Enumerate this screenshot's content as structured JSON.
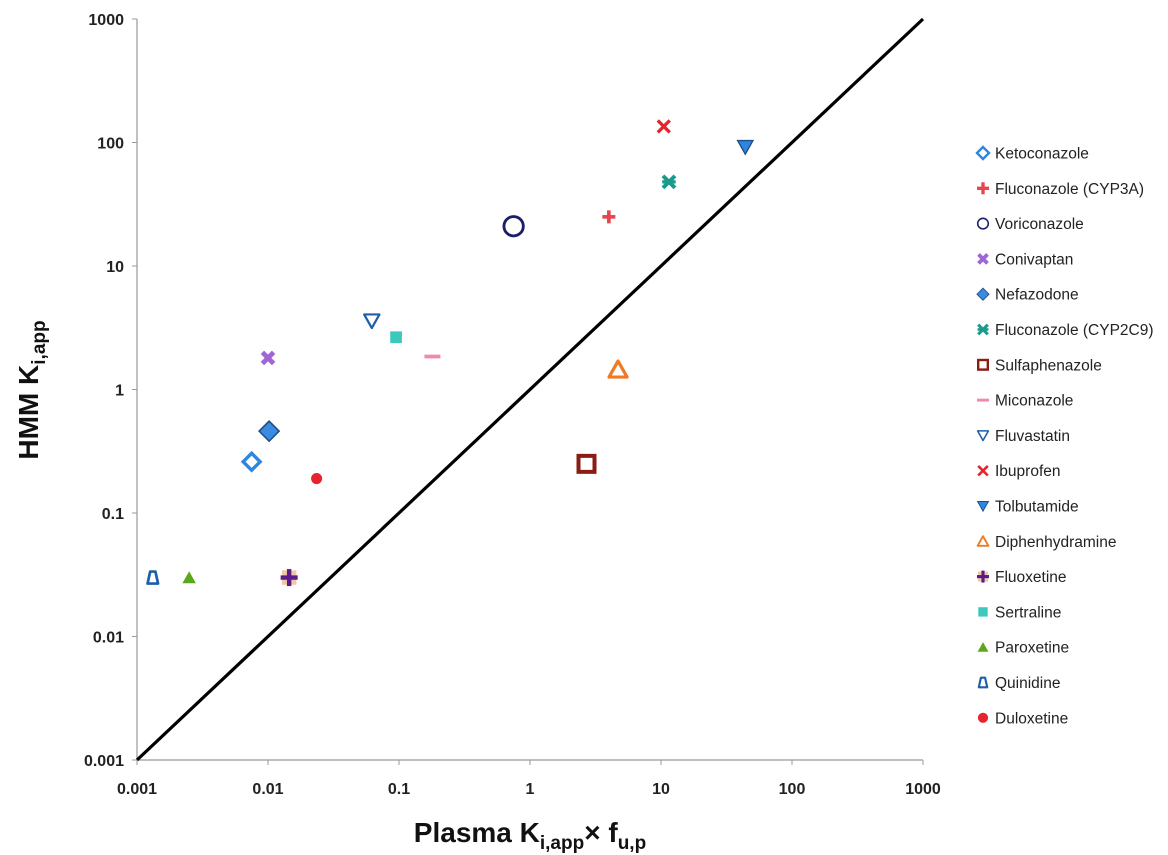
{
  "chart_data": {
    "type": "scatter",
    "title": "",
    "xlabel": {
      "main": "Plasma K",
      "sub": "i,app",
      "mid": "× f",
      "sub2": "u,p"
    },
    "ylabel": {
      "main": "HMM K",
      "sub": "i,app"
    },
    "xscale": "log",
    "yscale": "log",
    "xlim": [
      0.001,
      1000
    ],
    "ylim": [
      0.001,
      1000
    ],
    "x_ticks": [
      "0.001",
      "0.01",
      "0.1",
      "1",
      "10",
      "100",
      "1000"
    ],
    "y_ticks": [
      "0.001",
      "0.01",
      "0.1",
      "1",
      "10",
      "100",
      "1000"
    ],
    "grid": false,
    "legend_position": "right",
    "unity_line": {
      "from": [
        0.001,
        0.001
      ],
      "to": [
        1000,
        1000
      ],
      "color": "#000000"
    },
    "series": [
      {
        "name": "Ketoconazole",
        "marker": "diamond-open",
        "color": "#2e86de",
        "points": [
          [
            0.0075,
            0.26
          ]
        ]
      },
      {
        "name": "Fluconazole (CYP3A)",
        "marker": "plus",
        "color": "#e8434f",
        "points": [
          [
            4.0,
            25.0
          ]
        ]
      },
      {
        "name": "Voriconazole",
        "marker": "circle-open",
        "color": "#1b1f6b",
        "points": [
          [
            0.75,
            21.0
          ]
        ]
      },
      {
        "name": "Conivaptan",
        "marker": "x-thick",
        "color": "#a066d8",
        "points": [
          [
            0.01,
            1.8
          ]
        ]
      },
      {
        "name": "Nefazodone",
        "marker": "diamond-filled",
        "color": "#3a8ce0",
        "points": [
          [
            0.0102,
            0.46
          ]
        ]
      },
      {
        "name": "Fluconazole (CYP2C9)",
        "marker": "asterisk",
        "color": "#1a9a8a",
        "points": [
          [
            11.5,
            48.0
          ]
        ]
      },
      {
        "name": "Sulfaphenazole",
        "marker": "square-open",
        "color": "#8b1c13",
        "points": [
          [
            2.7,
            0.25
          ]
        ]
      },
      {
        "name": "Miconazole",
        "marker": "dash",
        "color": "#f08aa8",
        "points": [
          [
            0.18,
            1.85
          ]
        ]
      },
      {
        "name": "Fluvastatin",
        "marker": "triangle-down-open",
        "color": "#1f5ea8",
        "points": [
          [
            0.062,
            3.6
          ]
        ]
      },
      {
        "name": "Ibuprofen",
        "marker": "x",
        "color": "#e8232f",
        "points": [
          [
            10.5,
            135.0
          ]
        ]
      },
      {
        "name": "Tolbutamide",
        "marker": "triangle-down-filled",
        "color": "#2e86de",
        "points": [
          [
            44.0,
            92.0
          ]
        ]
      },
      {
        "name": "Diphenhydramine",
        "marker": "triangle-up-open",
        "color": "#f07a22",
        "points": [
          [
            4.7,
            1.45
          ]
        ]
      },
      {
        "name": "Fluoxetine",
        "marker": "plus-on-square",
        "color": "#5b1b8a",
        "points": [
          [
            0.0145,
            0.03
          ]
        ]
      },
      {
        "name": "Sertraline",
        "marker": "square-filled",
        "color": "#3cc8bc",
        "points": [
          [
            0.095,
            2.65
          ]
        ]
      },
      {
        "name": "Paroxetine",
        "marker": "triangle-up-filled",
        "color": "#5aa81e",
        "points": [
          [
            0.0025,
            0.03
          ]
        ]
      },
      {
        "name": "Quinidine",
        "marker": "trapezoid-open",
        "color": "#1f5ea8",
        "points": [
          [
            0.00132,
            0.03
          ]
        ]
      },
      {
        "name": "Duloxetine",
        "marker": "circle-filled",
        "color": "#e8232f",
        "points": [
          [
            0.0235,
            0.19
          ]
        ]
      }
    ]
  }
}
